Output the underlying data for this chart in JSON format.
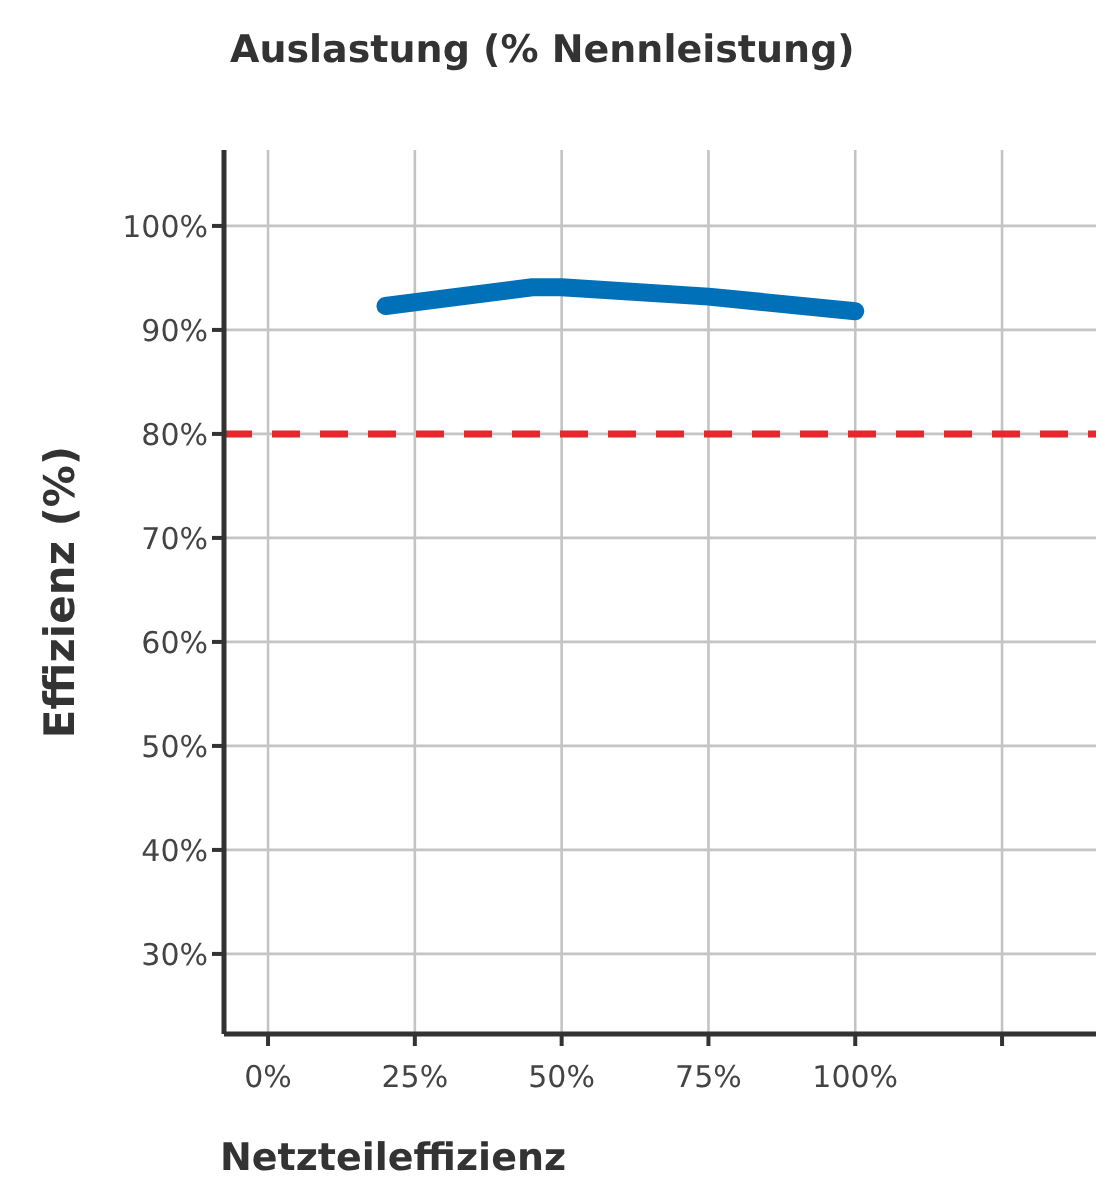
{
  "chart_data": {
    "type": "line",
    "title": "Auslastung (% Nennleistung)",
    "xlabel": "Netzteileffizienz",
    "ylabel": "Effizienz (%)",
    "x": [
      20,
      45,
      50,
      75,
      100
    ],
    "series": [
      {
        "color": "#0070b8",
        "values": [
          92.3,
          94.1,
          94.1,
          93.2,
          91.8
        ]
      }
    ],
    "xlim": [
      -7.5,
      141
    ],
    "xticks": [
      {
        "value": 0,
        "label": "0%"
      },
      {
        "value": 25,
        "label": "25%"
      },
      {
        "value": 50,
        "label": "50%"
      },
      {
        "value": 75,
        "label": "75%"
      },
      {
        "value": 100,
        "label": "100%"
      },
      {
        "value": 125,
        "label": null
      }
    ],
    "ylim": [
      22.3,
      107.3
    ],
    "yticks": [
      {
        "value": 30,
        "label": "30%"
      },
      {
        "value": 40,
        "label": "40%"
      },
      {
        "value": 50,
        "label": "50%"
      },
      {
        "value": 60,
        "label": "60%"
      },
      {
        "value": 70,
        "label": "70%"
      },
      {
        "value": 80,
        "label": "80%"
      },
      {
        "value": 90,
        "label": "90%"
      },
      {
        "value": 100,
        "label": "100%"
      }
    ],
    "grid": true,
    "ref_lines": [
      {
        "axis": "y",
        "value": 80,
        "color": "#e8262b",
        "line_style": "dashed"
      }
    ]
  }
}
